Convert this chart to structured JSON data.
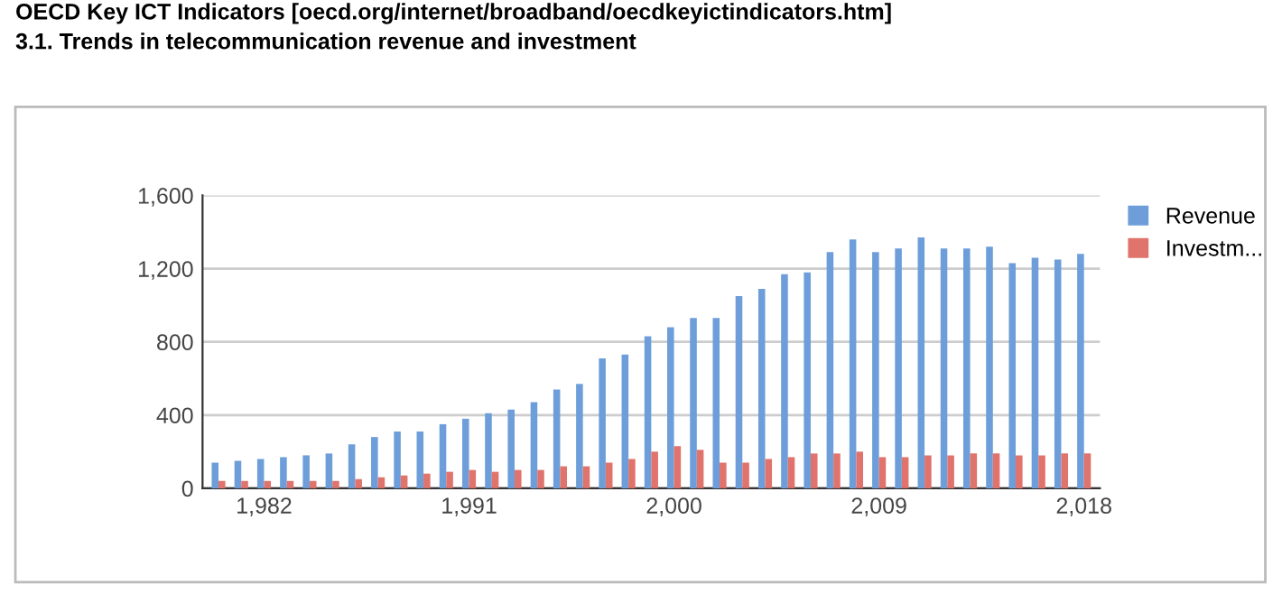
{
  "chart_data": {
    "type": "bar",
    "title": "OECD Key ICT Indicators [oecd.org/internet/broadband/oecdkeyictindicators.htm]",
    "subtitle": "3.1. Trends in telecommunication revenue and investment",
    "categories": [
      null,
      null,
      "1,982",
      null,
      null,
      null,
      null,
      null,
      null,
      null,
      null,
      "1,991",
      null,
      null,
      null,
      null,
      null,
      null,
      null,
      null,
      "2,000",
      null,
      null,
      null,
      null,
      null,
      null,
      null,
      null,
      "2,009",
      null,
      null,
      null,
      null,
      null,
      null,
      null,
      null,
      "2,018"
    ],
    "series": [
      {
        "name": "Revenue",
        "color": "#6d9eda",
        "values": [
          140,
          150,
          160,
          170,
          180,
          190,
          240,
          280,
          310,
          310,
          350,
          380,
          410,
          430,
          470,
          540,
          570,
          710,
          730,
          830,
          880,
          930,
          930,
          1050,
          1090,
          1170,
          1180,
          1290,
          1360,
          1290,
          1310,
          1370,
          1310,
          1310,
          1320,
          1230,
          1260,
          1250,
          1280
        ]
      },
      {
        "name": "Investm...",
        "color": "#e0736c",
        "values": [
          40,
          40,
          40,
          40,
          40,
          40,
          50,
          60,
          70,
          80,
          90,
          100,
          90,
          100,
          100,
          120,
          120,
          140,
          160,
          200,
          230,
          210,
          140,
          140,
          160,
          170,
          190,
          190,
          200,
          170,
          170,
          180,
          180,
          190,
          190,
          180,
          180,
          190,
          190
        ]
      }
    ],
    "ylim": [
      0,
      1600
    ],
    "yticks": [
      {
        "value": 0,
        "label": "0"
      },
      {
        "value": 400,
        "label": "400"
      },
      {
        "value": 800,
        "label": "800"
      },
      {
        "value": 1200,
        "label": "1,200"
      },
      {
        "value": 1600,
        "label": "1,600"
      }
    ],
    "grid": "y",
    "legend": "right"
  }
}
